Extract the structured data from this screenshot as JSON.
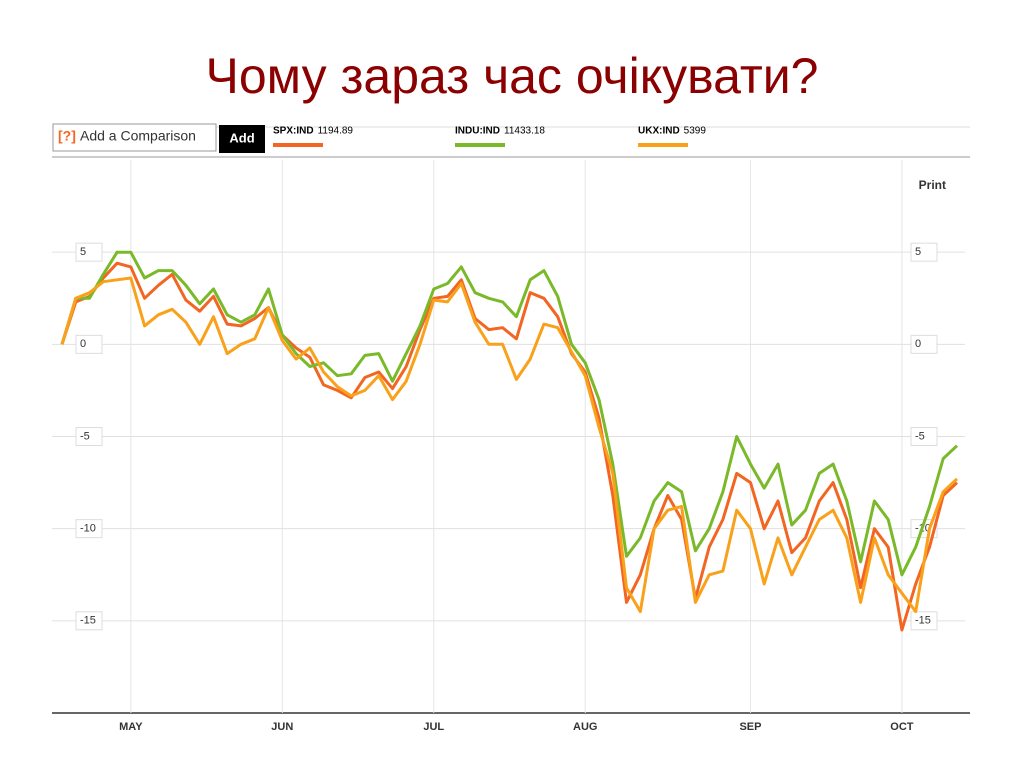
{
  "title": "Чому зараз час очікувати?",
  "toolbar": {
    "help": "[?]",
    "input": "Add a Comparison",
    "button": "Add",
    "print": "Print"
  },
  "chart_data": {
    "type": "line",
    "categories": [
      null,
      null,
      null,
      null,
      null,
      "MAY",
      null,
      null,
      null,
      null,
      null,
      null,
      null,
      null,
      null,
      null,
      "JUN",
      null,
      null,
      null,
      null,
      null,
      null,
      null,
      null,
      null,
      null,
      "JUL",
      null,
      null,
      null,
      null,
      null,
      null,
      null,
      null,
      null,
      null,
      "AUG",
      null,
      null,
      null,
      null,
      null,
      null,
      null,
      null,
      null,
      null,
      null,
      "SEP",
      null,
      null,
      null,
      null,
      null,
      null,
      null,
      null,
      null,
      null,
      "OCT",
      null,
      null,
      null,
      null
    ],
    "series": [
      {
        "name": "SPX:IND",
        "last": 1194.89,
        "color": "#f26522",
        "values": [
          0,
          2.3,
          2.6,
          3.6,
          4.4,
          4.2,
          2.5,
          3.2,
          3.8,
          2.4,
          1.8,
          2.6,
          1.1,
          1.0,
          1.4,
          2.0,
          0.5,
          -0.2,
          -0.7,
          -2.2,
          -2.5,
          -2.9,
          -1.8,
          -1.5,
          -2.4,
          -1.2,
          0.8,
          2.5,
          2.6,
          3.5,
          1.4,
          0.8,
          0.9,
          0.3,
          2.8,
          2.5,
          1.5,
          -0.5,
          -1.5,
          -4.0,
          -8.2,
          -14.0,
          -12.5,
          -10.0,
          -8.2,
          -9.5,
          -13.8,
          -11.0,
          -9.5,
          -7.0,
          -7.5,
          -10.0,
          -8.5,
          -11.3,
          -10.5,
          -8.5,
          -7.5,
          -9.5,
          -13.2,
          -10.0,
          -11.0,
          -15.5,
          -13.0,
          -11.0,
          -8.2,
          -7.5
        ]
      },
      {
        "name": "INDU:IND",
        "last": 11433.18,
        "color": "#7ab929",
        "values": [
          0,
          2.5,
          2.5,
          3.8,
          5,
          5,
          3.6,
          4,
          4.0,
          3.2,
          2.2,
          3.0,
          1.6,
          1.2,
          1.6,
          3.0,
          0.5,
          -0.5,
          -1.2,
          -1.0,
          -1.7,
          -1.6,
          -0.6,
          -0.5,
          -2.0,
          -0.5,
          1.0,
          3.0,
          3.3,
          4.2,
          2.8,
          2.5,
          2.3,
          1.5,
          3.5,
          4.0,
          2.6,
          0,
          -1.0,
          -3.0,
          -6.5,
          -11.5,
          -10.5,
          -8.5,
          -7.5,
          -8.0,
          -11.2,
          -10.0,
          -8.0,
          -5.0,
          -6.5,
          -7.8,
          -6.5,
          -9.8,
          -9.0,
          -7.0,
          -6.5,
          -8.5,
          -11.8,
          -8.5,
          -9.5,
          -12.5,
          -11.0,
          -8.8,
          -6.2,
          -5.5
        ]
      },
      {
        "name": "UKX:IND",
        "last": 5399,
        "color": "#f9a11b",
        "values": [
          0,
          2.5,
          2.8,
          3.4,
          3.5,
          3.6,
          1.0,
          1.6,
          1.9,
          1.2,
          0,
          1.5,
          -0.5,
          0,
          0.3,
          2.0,
          0.2,
          -0.8,
          -0.2,
          -1.5,
          -2.3,
          -2.8,
          -2.5,
          -1.7,
          -3.0,
          -2.0,
          0,
          2.4,
          2.3,
          3.3,
          1.2,
          0,
          0,
          -1.9,
          -0.8,
          1.1,
          0.9,
          -0.4,
          -1.7,
          -4.5,
          -7.0,
          -13.2,
          -14.5,
          -10.0,
          -9.0,
          -8.8,
          -14.0,
          -12.5,
          -12.3,
          -9.0,
          -10.0,
          -13.0,
          -10.5,
          -12.5,
          -11.0,
          -9.5,
          -9.0,
          -10.5,
          -14.0,
          -10.5,
          -12.5,
          -13.5,
          -14.5,
          -10.0,
          -8.0,
          -7.3
        ]
      }
    ],
    "ylim": [
      -20,
      10
    ],
    "yticks": [
      -15,
      -10,
      -5,
      0,
      5
    ],
    "grid": true
  }
}
